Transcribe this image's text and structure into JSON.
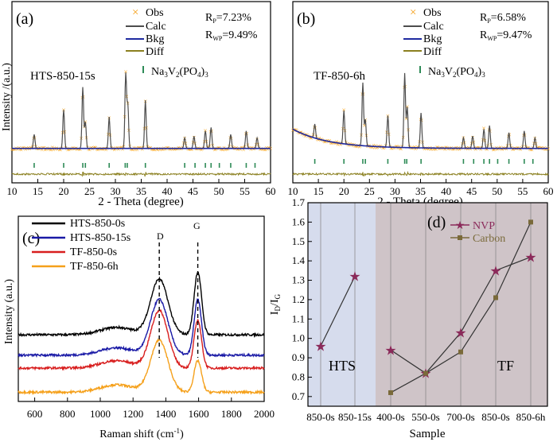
{
  "panels": {
    "a": {
      "tag": "(a)",
      "sample": "HTS-850-15s",
      "rp": "R",
      "rp_sub": "P",
      "rp_val": "=7.23%",
      "rwp": "R",
      "rwp_sub": "WP",
      "rwp_val": "=9.49%"
    },
    "b": {
      "tag": "(b)",
      "sample": "TF-850-6h",
      "rp": "R",
      "rp_sub": "P",
      "rp_val": "=6.58%",
      "rwp": "R",
      "rwp_sub": "WP",
      "rwp_val": "=9.47%"
    },
    "c": {
      "tag": "(c)",
      "d_label": "D",
      "g_label": "G"
    },
    "d": {
      "tag": "(d)",
      "hts_label": "HTS",
      "tf_label": "TF"
    }
  },
  "legend_xrd": {
    "obs": "Obs",
    "calc": "Calc",
    "bkg": "Bkg",
    "diff": "Diff",
    "phase_base": "Na",
    "phase_sub1": "3",
    "phase_mid": "V",
    "phase_sub2": "2",
    "phase_end": "(PO",
    "phase_sub3": "4",
    "phase_close": ")",
    "phase_sub4": "3"
  },
  "colors": {
    "obs": "#f5a01a",
    "calc": "#4d4d4d",
    "bkg": "#1f2aa0",
    "diff": "#8b8020",
    "bragg": "#2e8b57",
    "raman_black": "#000000",
    "raman_blue": "#1a1aa6",
    "raman_red": "#d81e1e",
    "raman_orange": "#f5a01a",
    "nvp": "#8b2a5a",
    "carbon": "#7a6a3a",
    "hts_bg": "#d6dced",
    "tf_bg": "#cfc4c8"
  },
  "chart_data": [
    {
      "type": "line",
      "panel": "a",
      "xlabel": "2 - Theta (degree)",
      "ylabel": "Intensity /(a.u.)",
      "xlim": [
        10,
        60
      ],
      "xticks": [
        10,
        15,
        20,
        25,
        30,
        35,
        40,
        45,
        50,
        55,
        60
      ],
      "peaks": [
        {
          "x": 14.3,
          "h": 0.16
        },
        {
          "x": 20.0,
          "h": 0.44
        },
        {
          "x": 23.7,
          "h": 0.7
        },
        {
          "x": 24.2,
          "h": 0.3
        },
        {
          "x": 28.8,
          "h": 0.36
        },
        {
          "x": 32.0,
          "h": 0.85
        },
        {
          "x": 32.4,
          "h": 0.5
        },
        {
          "x": 35.8,
          "h": 0.55
        },
        {
          "x": 43.4,
          "h": 0.12
        },
        {
          "x": 45.2,
          "h": 0.14
        },
        {
          "x": 47.4,
          "h": 0.2
        },
        {
          "x": 48.5,
          "h": 0.24
        },
        {
          "x": 52.3,
          "h": 0.16
        },
        {
          "x": 55.3,
          "h": 0.2
        },
        {
          "x": 57.4,
          "h": 0.12
        }
      ],
      "bragg_positions": [
        14.3,
        20.0,
        23.7,
        24.2,
        28.8,
        31.9,
        32.3,
        35.8,
        43.4,
        45.4,
        47.4,
        48.5,
        50.1,
        52.3,
        55.3,
        57.0
      ]
    },
    {
      "type": "line",
      "panel": "b",
      "xlabel": "2 - Theta (degree)",
      "ylabel": "",
      "xlim": [
        10,
        60
      ],
      "xticks": [
        10,
        15,
        20,
        25,
        30,
        35,
        40,
        45,
        50,
        55,
        60
      ],
      "peaks": [
        {
          "x": 14.3,
          "h": 0.16
        },
        {
          "x": 20.0,
          "h": 0.38
        },
        {
          "x": 23.7,
          "h": 0.72
        },
        {
          "x": 24.2,
          "h": 0.3
        },
        {
          "x": 28.6,
          "h": 0.36
        },
        {
          "x": 31.9,
          "h": 0.85
        },
        {
          "x": 32.4,
          "h": 0.46
        },
        {
          "x": 35.1,
          "h": 0.4
        },
        {
          "x": 43.4,
          "h": 0.12
        },
        {
          "x": 45.2,
          "h": 0.14
        },
        {
          "x": 47.4,
          "h": 0.22
        },
        {
          "x": 48.5,
          "h": 0.26
        },
        {
          "x": 52.3,
          "h": 0.18
        },
        {
          "x": 55.3,
          "h": 0.2
        },
        {
          "x": 57.4,
          "h": 0.12
        }
      ],
      "bragg_positions": [
        14.3,
        20.0,
        23.7,
        24.2,
        28.6,
        31.9,
        32.3,
        35.1,
        43.4,
        45.4,
        47.4,
        48.5,
        50.1,
        52.3,
        55.3,
        57.0
      ]
    },
    {
      "type": "line",
      "panel": "c",
      "xlabel": "Raman shift",
      "xunit": " (cm",
      "xunit_sup": "-1",
      "xunit_close": ")",
      "ylabel": "Intensity (a.u.)",
      "xlim": [
        500,
        2000
      ],
      "xticks": [
        600,
        800,
        1000,
        1200,
        1400,
        1600,
        1800,
        2000
      ],
      "d_band": 1360,
      "g_band": 1595,
      "series": [
        {
          "name": "HTS-850-0s",
          "color": "#000000",
          "offset": 0.36,
          "d": 0.3,
          "g": 0.34
        },
        {
          "name": "HTS-850-15s",
          "color": "#1a1aa6",
          "offset": 0.25,
          "d": 0.3,
          "g": 0.3
        },
        {
          "name": "TF-850-0s",
          "color": "#d81e1e",
          "offset": 0.18,
          "d": 0.31,
          "g": 0.26
        },
        {
          "name": "TF-850-6h",
          "color": "#f5a01a",
          "offset": 0.05,
          "d": 0.28,
          "g": 0.17
        }
      ]
    },
    {
      "type": "line",
      "panel": "d",
      "xlabel": "Sample",
      "ylabel": "I",
      "ylabel_sub1": "D",
      "ylabel_mid": "/I",
      "ylabel_sub2": "G",
      "ylim": [
        0.65,
        1.7
      ],
      "yticks": [
        0.7,
        0.8,
        0.9,
        1.0,
        1.1,
        1.2,
        1.3,
        1.4,
        1.5,
        1.6,
        1.7
      ],
      "categories": [
        "850-0s",
        "850-15s",
        "400-0s",
        "550-0s",
        "700-0s",
        "850-0s",
        "850-6h"
      ],
      "series": [
        {
          "name": "NVP",
          "color": "#8b2a5a",
          "groups": [
            [
              0.96,
              1.32
            ],
            [
              0.94,
              0.82,
              1.03,
              1.35,
              1.42
            ]
          ]
        },
        {
          "name": "Carbon",
          "color": "#7a6a3a",
          "groups": [
            [
              null,
              null
            ],
            [
              0.72,
              0.82,
              0.93,
              1.21,
              1.6
            ]
          ]
        }
      ]
    }
  ]
}
